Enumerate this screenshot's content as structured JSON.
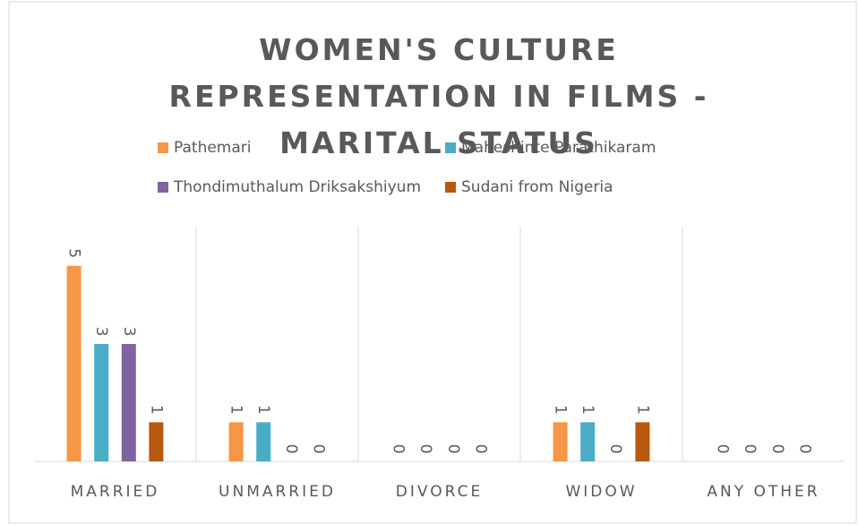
{
  "chart_data": {
    "type": "bar",
    "title": "WOMEN'S CULTURE REPRESENTATION IN FILMS - MARITAL STATUS",
    "categories": [
      "MARRIED",
      "UNMARRIED",
      "DIVORCE",
      "WIDOW",
      "ANY OTHER"
    ],
    "series": [
      {
        "name": "Pathemari",
        "color": "#f79646",
        "values": [
          5,
          1,
          0,
          1,
          0
        ]
      },
      {
        "name": "Maheshinte Parathikaram",
        "color": "#4bacc6",
        "values": [
          3,
          1,
          0,
          1,
          0
        ]
      },
      {
        "name": "Thondimuthalum Driksakshiyum",
        "color": "#8064a2",
        "values": [
          3,
          0,
          0,
          0,
          0
        ]
      },
      {
        "name": "Sudani from Nigeria",
        "color": "#b7590f",
        "values": [
          1,
          0,
          0,
          1,
          0
        ]
      }
    ],
    "ylim": [
      0,
      6
    ]
  }
}
